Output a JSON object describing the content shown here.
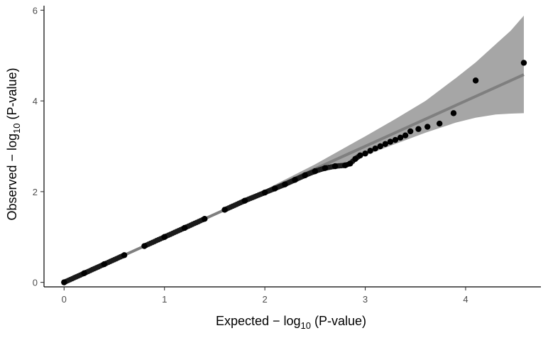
{
  "chart_data": {
    "type": "scatter",
    "title": "",
    "xlabel": "Expected  − log10 (P-value)",
    "ylabel": "Observed  − log10 (P-value)",
    "xlabel_parts": {
      "prefix": "Expected  − log",
      "sub": "10",
      "suffix": " (P-value)"
    },
    "ylabel_parts": {
      "prefix": "Observed  − log",
      "sub": "10",
      "suffix": " (P-value)"
    },
    "xlim": [
      -0.2,
      4.75
    ],
    "ylim": [
      -0.1,
      6.1
    ],
    "x_ticks": [
      0,
      1,
      2,
      3,
      4
    ],
    "y_ticks": [
      0,
      2,
      4,
      6
    ],
    "x_tick_labels": [
      "0",
      "1",
      "2",
      "3",
      "4"
    ],
    "y_tick_labels": [
      "0",
      "2",
      "4",
      "6"
    ],
    "grid": false,
    "legend": "none",
    "reference_line": {
      "slope": 1,
      "intercept": 0,
      "x_range": [
        0,
        4.58
      ],
      "color": "#7f7f7f"
    },
    "confidence_band": {
      "color": "#a6a6a6",
      "x": [
        0,
        1.0,
        2.0,
        2.5,
        3.0,
        3.3,
        3.6,
        3.9,
        4.1,
        4.3,
        4.45,
        4.58
      ],
      "upper": [
        0,
        1.0,
        2.04,
        2.6,
        3.22,
        3.6,
        4.0,
        4.5,
        4.85,
        5.25,
        5.55,
        5.88
      ],
      "lower": [
        0,
        1.0,
        1.96,
        2.42,
        2.8,
        3.05,
        3.3,
        3.52,
        3.63,
        3.7,
        3.72,
        3.73
      ]
    },
    "series": [
      {
        "color": "#000000",
        "x": [
          0.0,
          0.2,
          0.4,
          0.6,
          0.8,
          1.0,
          1.2,
          1.4,
          1.6,
          1.8,
          2.0,
          2.1,
          2.2,
          2.3,
          2.4,
          2.5,
          2.6,
          2.7,
          2.8,
          2.85,
          2.9,
          2.95,
          3.0,
          3.05,
          3.1,
          3.15,
          3.2,
          3.25,
          3.3,
          3.35,
          3.4,
          3.45,
          3.53,
          3.62,
          3.74,
          3.88,
          4.1,
          4.58
        ],
        "y": [
          0.0,
          0.2,
          0.4,
          0.6,
          0.8,
          1.0,
          1.2,
          1.4,
          1.6,
          1.8,
          1.98,
          2.07,
          2.16,
          2.26,
          2.36,
          2.45,
          2.52,
          2.56,
          2.58,
          2.62,
          2.72,
          2.8,
          2.84,
          2.9,
          2.95,
          3.0,
          3.05,
          3.1,
          3.14,
          3.19,
          3.24,
          3.33,
          3.38,
          3.43,
          3.5,
          3.73,
          4.45,
          4.84
        ]
      }
    ]
  }
}
